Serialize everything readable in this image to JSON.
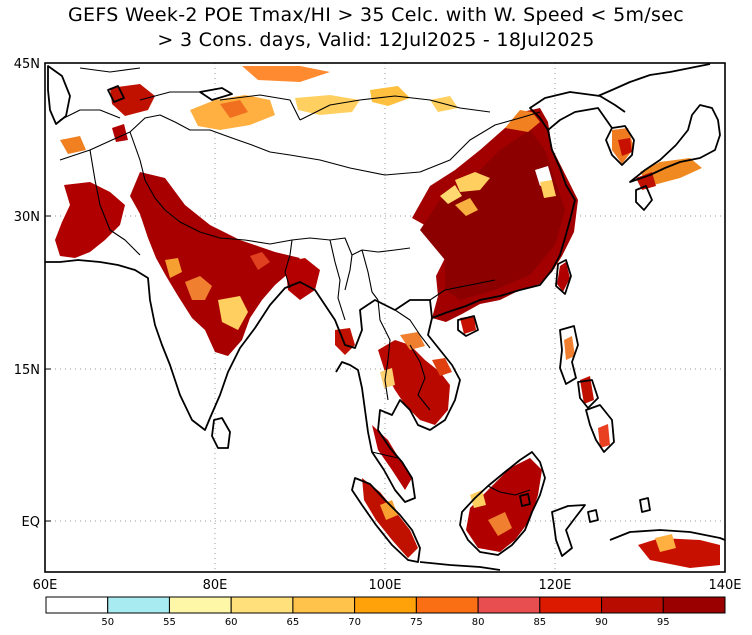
{
  "title_line1": "GEFS Week-2 POE Tmax/HI > 35 Celc. with W. Speed < 5m/sec",
  "title_line2": "> 3 Cons. days, Valid: 12Jul2025 - 18Jul2025",
  "lat_labels": [
    "45N",
    "30N",
    "15N",
    "EQ"
  ],
  "lon_labels": [
    "60E",
    "80E",
    "100E",
    "120E",
    "140E"
  ],
  "colorbar": {
    "bins": [
      {
        "color": "#ffffff"
      },
      {
        "color": "#a8ecf2"
      },
      {
        "color": "#fff7a8"
      },
      {
        "color": "#ffe07a"
      },
      {
        "color": "#ffc24a"
      },
      {
        "color": "#ffa20a"
      },
      {
        "color": "#fa6e14"
      },
      {
        "color": "#e84e50"
      },
      {
        "color": "#dc1a00"
      },
      {
        "color": "#b80c00"
      },
      {
        "color": "#9a0000"
      }
    ],
    "ticks": [
      "50",
      "55",
      "60",
      "65",
      "70",
      "75",
      "80",
      "85",
      "90",
      "95"
    ]
  },
  "land_color": "#ffffff",
  "heat_colors": {
    "core": "#a00000",
    "mid": "#cc1a00",
    "edge": "#f07a20",
    "fringe": "#ffd060"
  }
}
